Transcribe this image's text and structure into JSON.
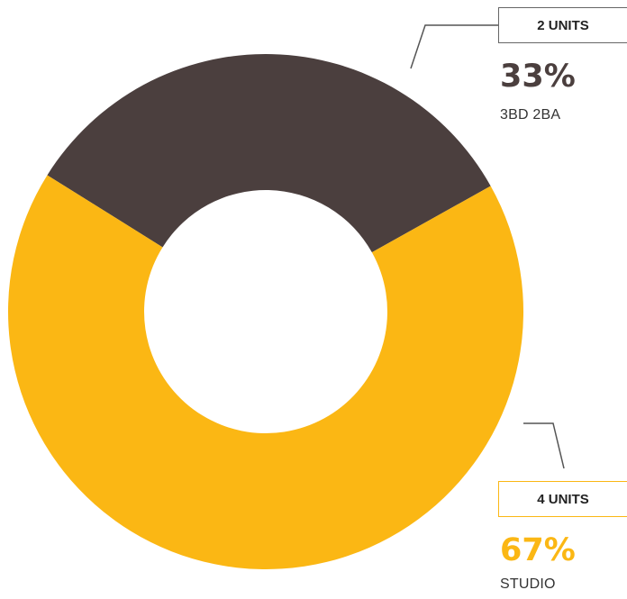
{
  "chart_data": {
    "type": "pie",
    "donut": true,
    "legend": "callouts",
    "slices": [
      {
        "label": "3BD 2BA",
        "units_label": "2 UNITS",
        "units": 2,
        "percent_label": "33%",
        "value": 33,
        "color": "#4b3f3e"
      },
      {
        "label": "STUDIO",
        "units_label": "4 UNITS",
        "units": 4,
        "percent_label": "67%",
        "value": 67,
        "color": "#fbb714"
      }
    ]
  }
}
